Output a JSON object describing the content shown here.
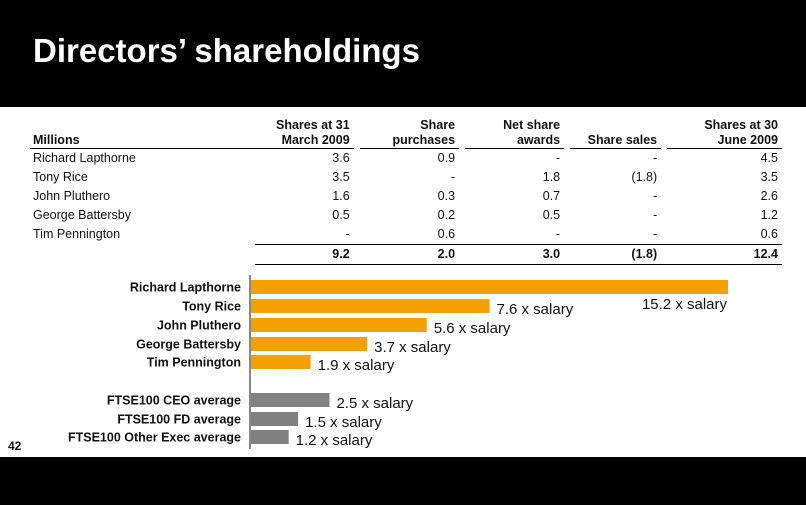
{
  "slide": {
    "title": "Directors’ shareholdings",
    "page_number": "42"
  },
  "table": {
    "headers": {
      "name": "Millions",
      "col1": [
        "Shares at 31",
        "March 2009"
      ],
      "col2": [
        "Share",
        "purchases"
      ],
      "col3": [
        "Net share",
        "awards"
      ],
      "col4": [
        "",
        "Share sales"
      ],
      "col5": [
        "Shares at 30",
        "June 2009"
      ]
    },
    "rows": [
      {
        "name": "Richard Lapthorne",
        "c1": "3.6",
        "c2": "0.9",
        "c3": "-",
        "c4": "-",
        "c5": "4.5"
      },
      {
        "name": "Tony Rice",
        "c1": "3.5",
        "c2": "-",
        "c3": "1.8",
        "c4": "(1.8)",
        "c5": "3.5"
      },
      {
        "name": "John Pluthero",
        "c1": "1.6",
        "c2": "0.3",
        "c3": "0.7",
        "c4": "-",
        "c5": "2.6"
      },
      {
        "name": "George Battersby",
        "c1": "0.5",
        "c2": "0.2",
        "c3": "0.5",
        "c4": "-",
        "c5": "1.2"
      },
      {
        "name": "Tim Pennington",
        "c1": "-",
        "c2": "0.6",
        "c3": "-",
        "c4": "-",
        "c5": "0.6"
      }
    ],
    "total": {
      "c1": "9.2",
      "c2": "2.0",
      "c3": "3.0",
      "c4": "(1.8)",
      "c5": "12.4"
    }
  },
  "chart_data": {
    "type": "bar",
    "orientation": "horizontal",
    "title": "",
    "xlabel": "",
    "ylabel": "",
    "xlim": [
      0,
      15.2
    ],
    "grid": false,
    "label_suffix": " x salary",
    "bars": [
      {
        "category": "Richard Lapthorne",
        "value": 15.2,
        "color": "#f5a000",
        "label": "15.2 x salary"
      },
      {
        "category": "Tony Rice",
        "value": 7.6,
        "color": "#f5a000",
        "label": "7.6 x salary"
      },
      {
        "category": "John Pluthero",
        "value": 5.6,
        "color": "#f5a000",
        "label": "5.6 x salary"
      },
      {
        "category": "George Battersby",
        "value": 3.7,
        "color": "#f5a000",
        "label": "3.7 x salary"
      },
      {
        "category": "Tim Pennington",
        "value": 1.9,
        "color": "#f5a000",
        "label": "1.9 x salary"
      },
      {
        "category": "FTSE100 CEO average",
        "value": 2.5,
        "color": "#808080",
        "label": "2.5 x salary"
      },
      {
        "category": "FTSE100 FD average",
        "value": 1.5,
        "color": "#808080",
        "label": "1.5 x salary"
      },
      {
        "category": "FTSE100 Other Exec average",
        "value": 1.2,
        "color": "#808080",
        "label": "1.2 x salary"
      }
    ]
  }
}
